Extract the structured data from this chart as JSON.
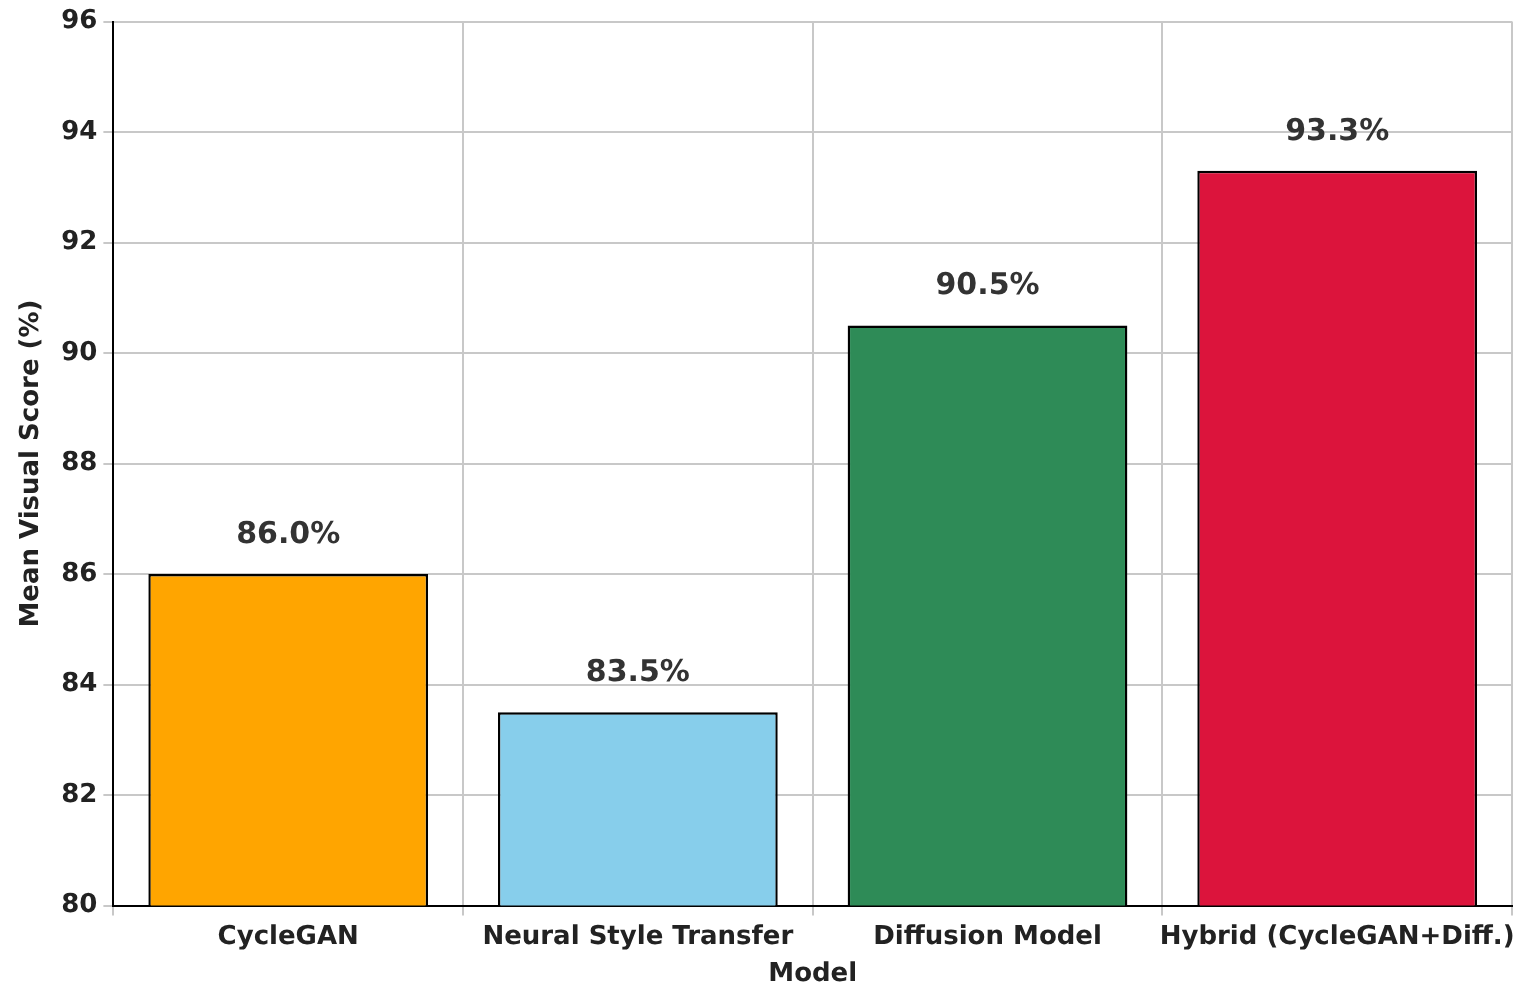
{
  "chart_data": {
    "type": "bar",
    "xlabel": "Model",
    "ylabel": "Mean Visual Score (%)",
    "categories": [
      "CycleGAN",
      "Neural Style Transfer",
      "Diffusion Model",
      "Hybrid (CycleGAN+Diff.)"
    ],
    "values": [
      86.0,
      83.5,
      90.5,
      93.3
    ],
    "colors": [
      "#ffa500",
      "#87ceeb",
      "#2e8b57",
      "#dc143c"
    ],
    "value_labels": [
      "86.0%",
      "83.5%",
      "90.5%",
      "93.3%"
    ],
    "ylim": [
      80,
      96
    ],
    "yticks": [
      80,
      82,
      84,
      86,
      88,
      90,
      92,
      94,
      96
    ],
    "grid": true
  }
}
